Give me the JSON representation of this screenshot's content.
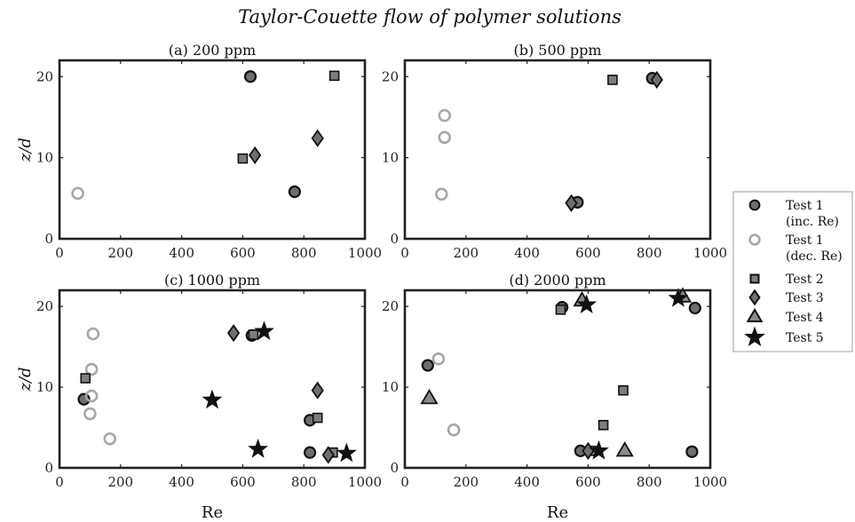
{
  "figure_title": "Taylor-Couette flow of polymer solutions",
  "chart_data": [
    {
      "type": "scatter",
      "title": "(a) 200 ppm",
      "xlabel": "",
      "ylabel": "z/d",
      "xlim": [
        0,
        1000
      ],
      "ylim": [
        0,
        22
      ],
      "xticks": [
        "0",
        "200",
        "400",
        "600",
        "800",
        "1000"
      ],
      "yticks": [
        "0",
        "10",
        "20"
      ],
      "series": [
        {
          "name": "Test 1 (inc. Re)",
          "points": [
            [
              625,
              20
            ],
            [
              770,
              5.8
            ]
          ]
        },
        {
          "name": "Test 1 (dec. Re)",
          "points": [
            [
              60,
              5.6
            ]
          ]
        },
        {
          "name": "Test 2",
          "points": [
            [
              900,
              20.1
            ],
            [
              600,
              9.9
            ]
          ]
        },
        {
          "name": "Test 3",
          "points": [
            [
              640,
              10.3
            ],
            [
              845,
              12.4
            ]
          ]
        }
      ]
    },
    {
      "type": "scatter",
      "title": "(b) 500 ppm",
      "xlabel": "",
      "ylabel": "",
      "xlim": [
        0,
        1000
      ],
      "ylim": [
        0,
        22
      ],
      "xticks": [
        "0",
        "200",
        "400",
        "600",
        "800",
        "1000"
      ],
      "yticks": [
        "0",
        "10",
        "20"
      ],
      "series": [
        {
          "name": "Test 1 (inc. Re)",
          "points": [
            [
              810,
              19.8
            ],
            [
              565,
              4.5
            ]
          ]
        },
        {
          "name": "Test 1 (dec. Re)",
          "points": [
            [
              130,
              15.2
            ],
            [
              130,
              12.5
            ],
            [
              120,
              5.5
            ]
          ]
        },
        {
          "name": "Test 2",
          "points": [
            [
              680,
              19.6
            ]
          ]
        },
        {
          "name": "Test 3",
          "points": [
            [
              825,
              19.6
            ],
            [
              545,
              4.4
            ]
          ]
        }
      ]
    },
    {
      "type": "scatter",
      "title": "(c) 1000 ppm",
      "xlabel": "Re",
      "ylabel": "z/d",
      "xlim": [
        0,
        1000
      ],
      "ylim": [
        0,
        22
      ],
      "xticks": [
        "0",
        "200",
        "400",
        "600",
        "800",
        "1000"
      ],
      "yticks": [
        "0",
        "10",
        "20"
      ],
      "series": [
        {
          "name": "Test 1 (inc. Re)",
          "points": [
            [
              80,
              8.5
            ],
            [
              630,
              16.4
            ],
            [
              820,
              5.9
            ],
            [
              820,
              1.9
            ]
          ]
        },
        {
          "name": "Test 1 (dec. Re)",
          "points": [
            [
              110,
              16.6
            ],
            [
              105,
              12.2
            ],
            [
              105,
              8.9
            ],
            [
              100,
              6.7
            ],
            [
              165,
              3.6
            ]
          ]
        },
        {
          "name": "Test 2",
          "points": [
            [
              85,
              11.1
            ],
            [
              635,
              16.5
            ],
            [
              845,
              6.2
            ],
            [
              895,
              1.9
            ]
          ]
        },
        {
          "name": "Test 3",
          "points": [
            [
              570,
              16.7
            ],
            [
              845,
              9.6
            ],
            [
              880,
              1.6
            ]
          ]
        },
        {
          "name": "Test 5",
          "points": [
            [
              670,
              16.9
            ],
            [
              500,
              8.4
            ],
            [
              650,
              2.3
            ],
            [
              940,
              1.8
            ]
          ]
        }
      ]
    },
    {
      "type": "scatter",
      "title": "(d) 2000 ppm",
      "xlabel": "Re",
      "ylabel": "",
      "xlim": [
        0,
        1000
      ],
      "ylim": [
        0,
        22
      ],
      "xticks": [
        "0",
        "200",
        "400",
        "600",
        "800",
        "1000"
      ],
      "yticks": [
        "0",
        "10",
        "20"
      ],
      "series": [
        {
          "name": "Test 1 (inc. Re)",
          "points": [
            [
              75,
              12.7
            ],
            [
              515,
              19.9
            ],
            [
              575,
              2.1
            ],
            [
              950,
              19.8
            ],
            [
              940,
              2
            ]
          ]
        },
        {
          "name": "Test 1 (dec. Re)",
          "points": [
            [
              110,
              13.5
            ],
            [
              160,
              4.7
            ]
          ]
        },
        {
          "name": "Test 2",
          "points": [
            [
              510,
              19.6
            ],
            [
              715,
              9.6
            ],
            [
              650,
              5.3
            ],
            [
              615,
              2.1
            ]
          ]
        },
        {
          "name": "Test 3",
          "points": [
            [
              600,
              2.1
            ]
          ]
        },
        {
          "name": "Test 4",
          "points": [
            [
              80,
              8.6
            ],
            [
              720,
              2.1
            ],
            [
              580,
              20.7
            ],
            [
              910,
              21.2
            ]
          ]
        },
        {
          "name": "Test 5",
          "points": [
            [
              595,
              20.2
            ],
            [
              895,
              21
            ],
            [
              635,
              2.1
            ]
          ]
        }
      ]
    }
  ],
  "legend": [
    {
      "line1": "Test 1",
      "line2": "(inc. Re)",
      "marker": "circle",
      "fill": "#6e6e6e",
      "stroke": "#111111"
    },
    {
      "line1": "Test 1",
      "line2": "(dec. Re)",
      "marker": "circle-open",
      "fill": "none",
      "stroke": "#a8a8a8"
    },
    {
      "line1": "Test 2",
      "line2": "",
      "marker": "square",
      "fill": "#7d7d7d",
      "stroke": "#111111"
    },
    {
      "line1": "Test 3",
      "line2": "",
      "marker": "diamond",
      "fill": "#6e6e6e",
      "stroke": "#111111"
    },
    {
      "line1": "Test 4",
      "line2": "",
      "marker": "triangle",
      "fill": "#8a8a8a",
      "stroke": "#111111"
    },
    {
      "line1": "Test 5",
      "line2": "",
      "marker": "star",
      "fill": "#111111",
      "stroke": "#111111"
    }
  ]
}
